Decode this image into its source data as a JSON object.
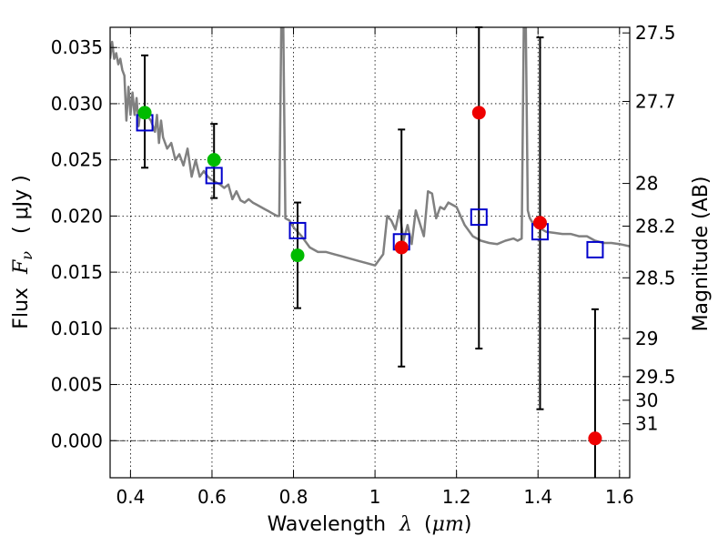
{
  "chart_data": {
    "type": "scatter",
    "xlabel": "Wavelength",
    "xlabel_symbol": "λ",
    "xlabel_unit_open": "(",
    "xlabel_unit": "μm",
    "xlabel_unit_close": ")",
    "ylabel": "Flux",
    "ylabel_symbol": "F",
    "ylabel_sub": "ν",
    "ylabel_unit": "( μJy )",
    "y2label": "Magnitude (AB)",
    "xlim": [
      0.35,
      1.625
    ],
    "ylim": [
      -0.0033,
      0.0368
    ],
    "grid": true,
    "x_ticks": [
      0.4,
      0.6,
      0.8,
      1.0,
      1.2,
      1.4,
      1.6
    ],
    "x_tick_labels": [
      "0.4",
      "0.6",
      "0.8",
      "1",
      "1.2",
      "1.4",
      "1.6"
    ],
    "y_ticks": [
      0.0,
      0.005,
      0.01,
      0.015,
      0.02,
      0.025,
      0.03,
      0.035
    ],
    "y_tick_labels": [
      "0.000",
      "0.005",
      "0.010",
      "0.015",
      "0.020",
      "0.025",
      "0.030",
      "0.035"
    ],
    "y2_ticks": [
      {
        "label": "27.5",
        "flux": 0.0363
      },
      {
        "label": "27.7",
        "flux": 0.0302
      },
      {
        "label": "28",
        "flux": 0.0229
      },
      {
        "label": "28.2",
        "flux": 0.0191
      },
      {
        "label": "28.5",
        "flux": 0.0145
      },
      {
        "label": "29",
        "flux": 0.0091
      },
      {
        "label": "29.5",
        "flux": 0.0057
      },
      {
        "label": "30",
        "flux": 0.0036
      },
      {
        "label": "31",
        "flux": 0.0015
      }
    ],
    "zero_line": 0.0,
    "series": [
      {
        "kind": "line",
        "color": "#808080",
        "x": [
          0.35,
          0.355,
          0.36,
          0.365,
          0.37,
          0.375,
          0.38,
          0.385,
          0.39,
          0.395,
          0.4,
          0.405,
          0.41,
          0.415,
          0.42,
          0.425,
          0.43,
          0.44,
          0.45,
          0.46,
          0.465,
          0.47,
          0.475,
          0.48,
          0.49,
          0.5,
          0.51,
          0.52,
          0.53,
          0.54,
          0.55,
          0.56,
          0.57,
          0.58,
          0.59,
          0.6,
          0.61,
          0.62,
          0.63,
          0.64,
          0.65,
          0.66,
          0.67,
          0.68,
          0.69,
          0.7,
          0.71,
          0.72,
          0.73,
          0.74,
          0.75,
          0.76,
          0.765,
          0.77,
          0.775,
          0.78,
          0.79,
          0.8,
          0.82,
          0.84,
          0.86,
          0.88,
          0.9,
          0.92,
          0.94,
          0.96,
          0.98,
          1.0,
          1.02,
          1.03,
          1.04,
          1.05,
          1.06,
          1.07,
          1.08,
          1.09,
          1.1,
          1.12,
          1.13,
          1.14,
          1.15,
          1.16,
          1.17,
          1.18,
          1.2,
          1.22,
          1.24,
          1.26,
          1.28,
          1.3,
          1.32,
          1.34,
          1.35,
          1.36,
          1.365,
          1.37,
          1.375,
          1.38,
          1.39,
          1.4,
          1.42,
          1.44,
          1.46,
          1.48,
          1.5,
          1.52,
          1.54,
          1.56,
          1.58,
          1.6,
          1.625
        ],
        "y": [
          0.034,
          0.0355,
          0.034,
          0.0345,
          0.0335,
          0.034,
          0.033,
          0.0325,
          0.0285,
          0.0315,
          0.029,
          0.031,
          0.029,
          0.0305,
          0.028,
          0.0295,
          0.029,
          0.029,
          0.0285,
          0.0275,
          0.029,
          0.0265,
          0.0285,
          0.027,
          0.026,
          0.0265,
          0.025,
          0.0255,
          0.0245,
          0.026,
          0.0235,
          0.025,
          0.0235,
          0.024,
          0.0235,
          0.0232,
          0.023,
          0.0228,
          0.0225,
          0.0228,
          0.0215,
          0.0222,
          0.0214,
          0.0212,
          0.0215,
          0.0212,
          0.021,
          0.0208,
          0.0206,
          0.0204,
          0.0202,
          0.02,
          0.02,
          0.037,
          0.037,
          0.0198,
          0.0196,
          0.019,
          0.0182,
          0.0172,
          0.0168,
          0.0168,
          0.0166,
          0.0164,
          0.0162,
          0.016,
          0.0158,
          0.0156,
          0.0166,
          0.02,
          0.0196,
          0.0188,
          0.0205,
          0.0178,
          0.0192,
          0.0175,
          0.0205,
          0.0182,
          0.0222,
          0.022,
          0.0198,
          0.0208,
          0.0206,
          0.0212,
          0.0208,
          0.0192,
          0.0182,
          0.0178,
          0.0176,
          0.0175,
          0.0178,
          0.018,
          0.0178,
          0.018,
          0.037,
          0.037,
          0.0205,
          0.0198,
          0.0192,
          0.019,
          0.0186,
          0.0185,
          0.0184,
          0.0184,
          0.0182,
          0.0182,
          0.0178,
          0.0176,
          0.0176,
          0.0175,
          0.0173
        ]
      },
      {
        "kind": "square",
        "color": "#0000cc",
        "x": [
          0.435,
          0.605,
          0.81,
          1.065,
          1.255,
          1.405,
          1.54
        ],
        "y": [
          0.0283,
          0.0236,
          0.0187,
          0.0177,
          0.0199,
          0.0186,
          0.017
        ]
      },
      {
        "kind": "circle",
        "color": "#00bb00",
        "x": [
          0.435,
          0.605,
          0.81
        ],
        "y": [
          0.0292,
          0.025,
          0.0165
        ]
      },
      {
        "kind": "circle",
        "color": "#ee0000",
        "x": [
          1.065,
          1.255,
          1.405,
          1.54
        ],
        "y": [
          0.0172,
          0.0292,
          0.0194,
          0.0002
        ]
      },
      {
        "kind": "errorbar",
        "color": "#000000",
        "x": [
          0.435,
          0.605,
          0.81,
          1.065,
          1.255,
          1.405,
          1.54
        ],
        "y_low": [
          0.0243,
          0.0216,
          0.0118,
          0.0066,
          0.0082,
          0.0028,
          -0.0035
        ],
        "y_high": [
          0.0343,
          0.0282,
          0.0212,
          0.0277,
          0.0368,
          0.0359,
          0.0117
        ]
      }
    ]
  }
}
